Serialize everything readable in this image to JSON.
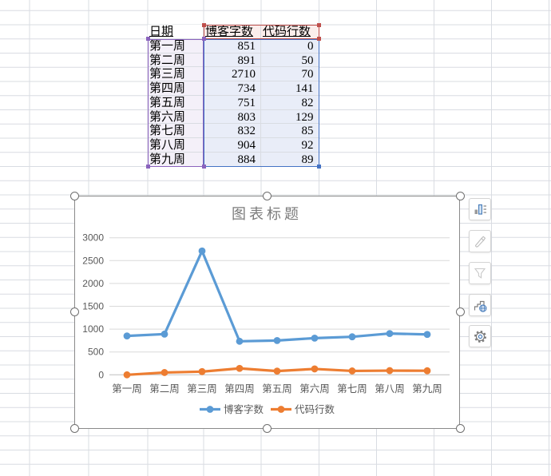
{
  "table": {
    "header": {
      "date": "日期",
      "blog": "博客字数",
      "code": "代码行数"
    },
    "rows": [
      {
        "date": "第一周",
        "blog": "851",
        "code": "0"
      },
      {
        "date": "第二周",
        "blog": "891",
        "code": "50"
      },
      {
        "date": "第三周",
        "blog": "2710",
        "code": "70"
      },
      {
        "date": "第四周",
        "blog": "734",
        "code": "141"
      },
      {
        "date": "第五周",
        "blog": "751",
        "code": "82"
      },
      {
        "date": "第六周",
        "blog": "803",
        "code": "129"
      },
      {
        "date": "第七周",
        "blog": "832",
        "code": "85"
      },
      {
        "date": "第八周",
        "blog": "904",
        "code": "92"
      },
      {
        "date": "第九周",
        "blog": "884",
        "code": "89"
      }
    ],
    "range_highlight_colors": {
      "categories_border": "#8a63bd",
      "categories_fill": "#f4f0f9",
      "series_names_border": "#bf4f4c",
      "series_names_fill": "#fbeeec",
      "values_border": "#4472c4",
      "values_fill": "#e9edf8"
    }
  },
  "chart_data": {
    "type": "line",
    "title": "图表标题",
    "categories": [
      "第一周",
      "第二周",
      "第三周",
      "第四周",
      "第五周",
      "第六周",
      "第七周",
      "第八周",
      "第九周"
    ],
    "series": [
      {
        "name": "博客字数",
        "color": "#5B9BD5",
        "values": [
          851,
          891,
          2710,
          734,
          751,
          803,
          832,
          904,
          884
        ]
      },
      {
        "name": "代码行数",
        "color": "#ED7D31",
        "values": [
          0,
          50,
          70,
          141,
          82,
          129,
          85,
          92,
          89
        ]
      }
    ],
    "ylim": [
      0,
      3000
    ],
    "yticks": [
      0,
      500,
      1000,
      1500,
      2000,
      2500,
      3000
    ],
    "grid": true,
    "legend_position": "bottom",
    "marker": "circle",
    "title_color": "#7b7b7b",
    "axis_text_color": "#595959",
    "gridline_color": "#d9d9d9"
  },
  "chart_tools": {
    "buttons": [
      {
        "name": "chart-elements",
        "icon": "chart-elements-icon"
      },
      {
        "name": "chart-style",
        "icon": "brush-icon"
      },
      {
        "name": "chart-filter",
        "icon": "funnel-icon"
      },
      {
        "name": "online-chart",
        "icon": "chart-globe-icon"
      },
      {
        "name": "settings",
        "icon": "gear-icon"
      }
    ]
  }
}
